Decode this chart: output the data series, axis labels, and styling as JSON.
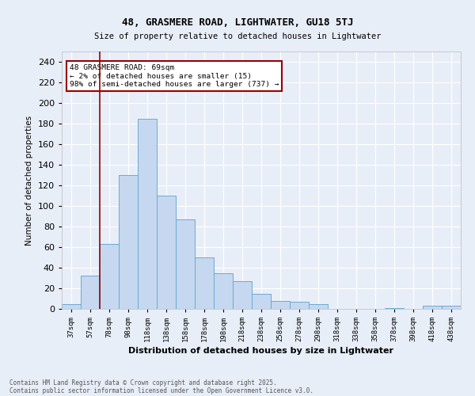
{
  "title1": "48, GRASMERE ROAD, LIGHTWATER, GU18 5TJ",
  "title2": "Size of property relative to detached houses in Lightwater",
  "xlabel": "Distribution of detached houses by size in Lightwater",
  "ylabel": "Number of detached properties",
  "categories": [
    "37sqm",
    "57sqm",
    "78sqm",
    "98sqm",
    "118sqm",
    "138sqm",
    "158sqm",
    "178sqm",
    "198sqm",
    "218sqm",
    "238sqm",
    "258sqm",
    "278sqm",
    "298sqm",
    "318sqm",
    "338sqm",
    "358sqm",
    "378sqm",
    "398sqm",
    "418sqm",
    "438sqm"
  ],
  "values": [
    5,
    32,
    63,
    130,
    185,
    110,
    87,
    50,
    35,
    27,
    15,
    8,
    7,
    5,
    0,
    0,
    0,
    1,
    0,
    3,
    3
  ],
  "bar_color": "#c5d8ef",
  "bar_edge_color": "#6aaad4",
  "background_color": "#e8eef8",
  "grid_color": "#ffffff",
  "vline_x": 1.5,
  "vline_color": "#990000",
  "annotation_text": "48 GRASMERE ROAD: 69sqm\n← 2% of detached houses are smaller (15)\n98% of semi-detached houses are larger (737) →",
  "annotation_box_color": "#ffffff",
  "annotation_box_edge": "#990000",
  "footer1": "Contains HM Land Registry data © Crown copyright and database right 2025.",
  "footer2": "Contains public sector information licensed under the Open Government Licence v3.0.",
  "ylim": [
    0,
    250
  ],
  "yticks": [
    0,
    20,
    40,
    60,
    80,
    100,
    120,
    140,
    160,
    180,
    200,
    220,
    240
  ]
}
